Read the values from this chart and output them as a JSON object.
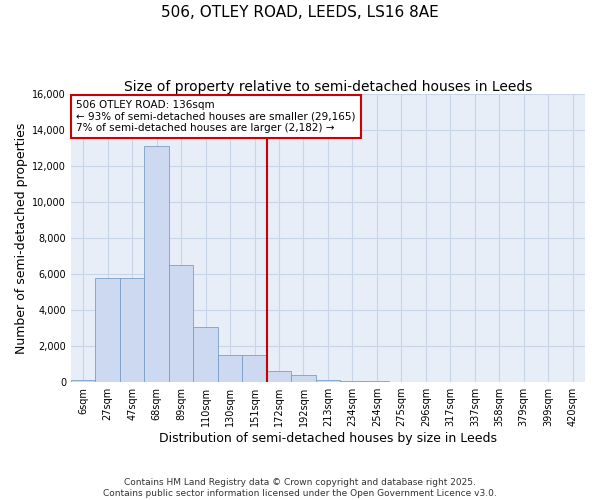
{
  "title_line1": "506, OTLEY ROAD, LEEDS, LS16 8AE",
  "title_line2": "Size of property relative to semi-detached houses in Leeds",
  "xlabel": "Distribution of semi-detached houses by size in Leeds",
  "ylabel": "Number of semi-detached properties",
  "categories": [
    "6sqm",
    "27sqm",
    "47sqm",
    "68sqm",
    "89sqm",
    "110sqm",
    "130sqm",
    "151sqm",
    "172sqm",
    "192sqm",
    "213sqm",
    "234sqm",
    "254sqm",
    "275sqm",
    "296sqm",
    "317sqm",
    "337sqm",
    "358sqm",
    "379sqm",
    "399sqm",
    "420sqm"
  ],
  "values": [
    120,
    5800,
    5800,
    13100,
    6500,
    3050,
    1480,
    1480,
    620,
    380,
    120,
    80,
    50,
    30,
    20,
    5,
    5,
    3,
    2,
    1,
    0
  ],
  "bar_color": "#ccd9f0",
  "bar_edge_color": "#7a9ec8",
  "vline_color": "#cc0000",
  "vline_pos": 7.5,
  "annotation_text": "506 OTLEY ROAD: 136sqm\n← 93% of semi-detached houses are smaller (29,165)\n7% of semi-detached houses are larger (2,182) →",
  "annotation_box_color": "#cc0000",
  "ylim": [
    0,
    16000
  ],
  "yticks": [
    0,
    2000,
    4000,
    6000,
    8000,
    10000,
    12000,
    14000,
    16000
  ],
  "grid_color": "#c8d4e8",
  "plot_background": "#e8eef8",
  "footer_line1": "Contains HM Land Registry data © Crown copyright and database right 2025.",
  "footer_line2": "Contains public sector information licensed under the Open Government Licence v3.0.",
  "title_fontsize": 11,
  "subtitle_fontsize": 10,
  "axis_label_fontsize": 9,
  "tick_fontsize": 7,
  "annotation_fontsize": 7.5,
  "footer_fontsize": 6.5
}
